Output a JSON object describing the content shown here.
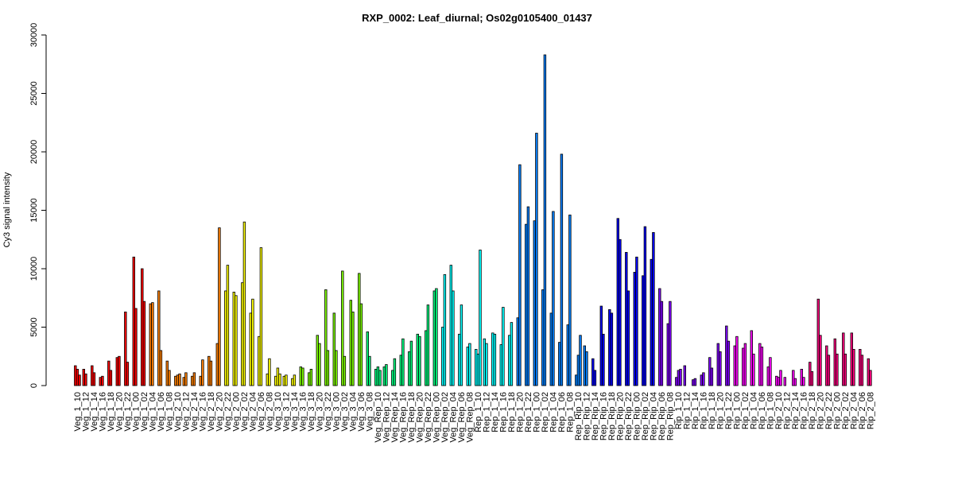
{
  "chart_data": {
    "type": "bar",
    "title": "RXP_0002: Leaf_diurnal; Os02g0105400_01437",
    "xlabel": "",
    "ylabel": "Cy3 signal intensity",
    "ylim": [
      0,
      30000
    ],
    "yticks": [
      0,
      5000,
      10000,
      15000,
      20000,
      25000,
      30000
    ],
    "grid": false,
    "legend": "none",
    "categories": [
      "Veg_1_10",
      "Veg_1_12",
      "Veg_1_14",
      "Veg_1_16",
      "Veg_1_18",
      "Veg_1_20",
      "Veg_1_22",
      "Veg_1_00",
      "Veg_1_02",
      "Veg_1_04",
      "Veg_1_06",
      "Veg_1_08",
      "Veg_2_10",
      "Veg_2_12",
      "Veg_2_14",
      "Veg_2_16",
      "Veg_2_18",
      "Veg_2_20",
      "Veg_2_22",
      "Veg_2_00",
      "Veg_2_02",
      "Veg_2_04",
      "Veg_2_06",
      "Veg_2_08",
      "Veg_3_10",
      "Veg_3_12",
      "Veg_3_14",
      "Veg_3_16",
      "Veg_3_18",
      "Veg_3_20",
      "Veg_3_22",
      "Veg_3_00",
      "Veg_3_02",
      "Veg_3_04",
      "Veg_3_06",
      "Veg_3_08",
      "Veg_Rep_10",
      "Veg_Rep_12",
      "Veg_Rep_14",
      "Veg_Rep_16",
      "Veg_Rep_18",
      "Veg_Rep_20",
      "Veg_Rep_22",
      "Veg_Rep_00",
      "Veg_Rep_02",
      "Veg_Rep_04",
      "Veg_Rep_06",
      "Veg_Rep_08",
      "Rep_1_10",
      "Rep_1_12",
      "Rep_1_14",
      "Rep_1_16",
      "Rep_1_18",
      "Rep_1_20",
      "Rep_1_22",
      "Rep_1_00",
      "Rep_1_02",
      "Rep_1_04",
      "Rep_1_06",
      "Rep_1_08",
      "Rep_Rip_10",
      "Rep_Rip_12",
      "Rep_Rip_14",
      "Rep_Rip_16",
      "Rep_Rip_18",
      "Rep_Rip_20",
      "Rep_Rip_22",
      "Rep_Rip_00",
      "Rep_Rip_02",
      "Rep_Rip_04",
      "Rep_Rip_06",
      "Rep_Rip_08",
      "Rip_1_10",
      "Rip_1_12",
      "Rip_1_14",
      "Rip_1_16",
      "Rip_1_18",
      "Rip_1_20",
      "Rip_1_22",
      "Rip_1_00",
      "Rip_1_02",
      "Rip_1_04",
      "Rip_1_06",
      "Rip_1_08",
      "Rip_2_10",
      "Rip_2_12",
      "Rip_2_14",
      "Rip_2_16",
      "Rip_2_18",
      "Rip_2_20",
      "Rip_2_22",
      "Rip_2_00",
      "Rip_2_02",
      "Rip_2_04",
      "Rip_2_06",
      "Rip_2_08"
    ],
    "values": [
      [
        1700,
        1400,
        900
      ],
      [
        1400,
        1000,
        0
      ],
      [
        1700,
        1100,
        0
      ],
      [
        700,
        800,
        0
      ],
      [
        2100,
        1300,
        0
      ],
      [
        2400,
        2500,
        0
      ],
      [
        6300,
        2000,
        0
      ],
      [
        11000,
        6600,
        0
      ],
      [
        10000,
        7200,
        0
      ],
      [
        7000,
        7100,
        0
      ],
      [
        8100,
        3000,
        0
      ],
      [
        2100,
        1300,
        0
      ],
      [
        800,
        900,
        1000
      ],
      [
        700,
        1100,
        0
      ],
      [
        800,
        1100,
        0
      ],
      [
        800,
        2200,
        0
      ],
      [
        2500,
        2100,
        0
      ],
      [
        3600,
        13500,
        0
      ],
      [
        8100,
        10300,
        0
      ],
      [
        8000,
        7700,
        0
      ],
      [
        8800,
        14000,
        0
      ],
      [
        6200,
        7400,
        0
      ],
      [
        4200,
        11800,
        0
      ],
      [
        1000,
        2300,
        0
      ],
      [
        800,
        1500,
        1000
      ],
      [
        800,
        900,
        0
      ],
      [
        600,
        900,
        0
      ],
      [
        1600,
        1500,
        0
      ],
      [
        1100,
        1400,
        0
      ],
      [
        4300,
        3600,
        0
      ],
      [
        8200,
        3000,
        0
      ],
      [
        6200,
        3000,
        0
      ],
      [
        9800,
        2500,
        0
      ],
      [
        7300,
        6300,
        0
      ],
      [
        9600,
        7000,
        0
      ],
      [
        4600,
        2500,
        0
      ],
      [
        1400,
        1600,
        1300
      ],
      [
        1600,
        1800,
        0
      ],
      [
        1300,
        2300,
        0
      ],
      [
        2600,
        4000,
        0
      ],
      [
        2900,
        3800,
        0
      ],
      [
        4400,
        4200,
        0
      ],
      [
        4700,
        6900,
        0
      ],
      [
        8100,
        8300,
        0
      ],
      [
        5000,
        9500,
        0
      ],
      [
        10300,
        8100,
        0
      ],
      [
        4400,
        6900,
        0
      ],
      [
        3300,
        3600,
        0
      ],
      [
        3100,
        2700,
        11600
      ],
      [
        4000,
        3600,
        0
      ],
      [
        4500,
        4400,
        0
      ],
      [
        3500,
        6700,
        0
      ],
      [
        4300,
        5400,
        0
      ],
      [
        5800,
        18900,
        0
      ],
      [
        13800,
        15300,
        0
      ],
      [
        14100,
        21600,
        0
      ],
      [
        8200,
        28300,
        0
      ],
      [
        6200,
        14900,
        0
      ],
      [
        3700,
        19800,
        0
      ],
      [
        5200,
        14600,
        0
      ],
      [
        900,
        2600,
        4300
      ],
      [
        3400,
        2900,
        0
      ],
      [
        2300,
        1300,
        0
      ],
      [
        6800,
        4400,
        0
      ],
      [
        6500,
        6200,
        0
      ],
      [
        14300,
        12500,
        0
      ],
      [
        11400,
        8100,
        0
      ],
      [
        9700,
        11000,
        0
      ],
      [
        9400,
        13600,
        0
      ],
      [
        10800,
        13100,
        0
      ],
      [
        8300,
        7200,
        0
      ],
      [
        5300,
        7200,
        0
      ],
      [
        700,
        1300,
        1400
      ],
      [
        1700,
        0,
        0
      ],
      [
        500,
        600,
        0
      ],
      [
        900,
        1100,
        0
      ],
      [
        2400,
        1500,
        0
      ],
      [
        3600,
        2900,
        0
      ],
      [
        5100,
        3800,
        0
      ],
      [
        3400,
        4200,
        0
      ],
      [
        3200,
        3600,
        0
      ],
      [
        4700,
        2700,
        0
      ],
      [
        3600,
        3300,
        0
      ],
      [
        1600,
        2400,
        0
      ],
      [
        800,
        700,
        1300
      ],
      [
        700,
        0,
        0
      ],
      [
        1300,
        600,
        0
      ],
      [
        1400,
        700,
        0
      ],
      [
        2000,
        1200,
        0
      ],
      [
        7400,
        4300,
        0
      ],
      [
        3400,
        2600,
        0
      ],
      [
        4000,
        2700,
        0
      ],
      [
        4500,
        2700,
        0
      ],
      [
        4500,
        3100,
        0
      ],
      [
        3100,
        2600,
        0
      ],
      [
        2300,
        1300,
        0
      ]
    ],
    "colors": [
      "#ff0000",
      "#ff8000",
      "#ffff00",
      "#80ff00",
      "#00ff80",
      "#00ffff",
      "#0080ff",
      "#0000ff",
      "#8000ff",
      "#ff00ff",
      "#ff0080"
    ]
  }
}
